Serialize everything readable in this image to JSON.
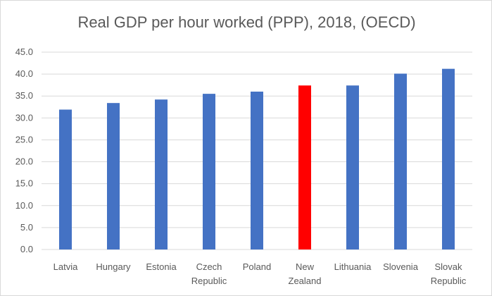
{
  "chart_data": {
    "type": "bar",
    "title": "Real GDP per hour worked (PPP), 2018, (OECD)",
    "categories": [
      [
        "Latvia"
      ],
      [
        "Hungary"
      ],
      [
        "Estonia"
      ],
      [
        "Czech",
        "Republic"
      ],
      [
        "Poland"
      ],
      [
        "New",
        "Zealand"
      ],
      [
        "Lithuania"
      ],
      [
        "Slovenia"
      ],
      [
        "Slovak",
        "Republic"
      ]
    ],
    "values": [
      31.9,
      33.4,
      34.2,
      35.5,
      36.0,
      37.4,
      37.4,
      40.1,
      41.2
    ],
    "bar_colors": [
      "#4472c4",
      "#4472c4",
      "#4472c4",
      "#4472c4",
      "#4472c4",
      "#ff0000",
      "#4472c4",
      "#4472c4",
      "#4472c4"
    ],
    "yticks": [
      "0.0",
      "5.0",
      "10.0",
      "15.0",
      "20.0",
      "25.0",
      "30.0",
      "35.0",
      "40.0",
      "45.0"
    ],
    "ylim": [
      0,
      45
    ],
    "grid": true,
    "xlabel": "",
    "ylabel": ""
  }
}
